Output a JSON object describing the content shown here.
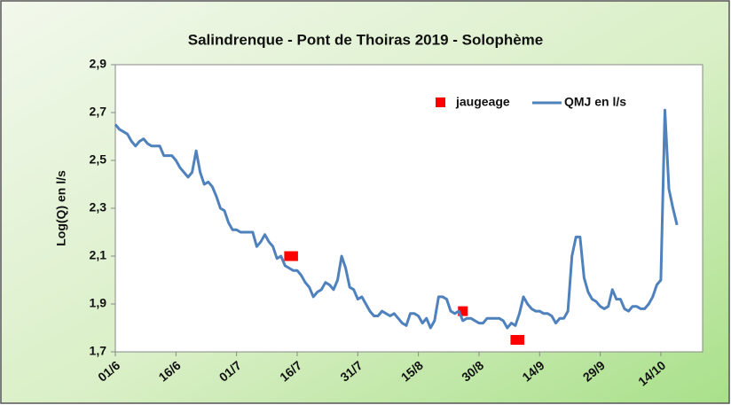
{
  "chart_data": {
    "type": "line",
    "title": "Salindrenque - Pont de Thoiras 2019 - Solophème",
    "y_label": "Log(Q) en l/s",
    "categories": [
      "01/6",
      null,
      null,
      null,
      null,
      null,
      null,
      null,
      null,
      null,
      null,
      null,
      null,
      null,
      null,
      "16/6",
      null,
      null,
      null,
      null,
      null,
      null,
      null,
      null,
      null,
      null,
      null,
      null,
      null,
      null,
      "01/7",
      null,
      null,
      null,
      null,
      null,
      null,
      null,
      null,
      null,
      null,
      null,
      null,
      null,
      null,
      "16/7",
      null,
      null,
      null,
      null,
      null,
      null,
      null,
      null,
      null,
      null,
      null,
      null,
      null,
      null,
      "31/7",
      null,
      null,
      null,
      null,
      null,
      null,
      null,
      null,
      null,
      null,
      null,
      null,
      null,
      null,
      "15/8",
      null,
      null,
      null,
      null,
      null,
      null,
      null,
      null,
      null,
      null,
      null,
      null,
      null,
      null,
      "30/8",
      null,
      null,
      null,
      null,
      null,
      null,
      null,
      null,
      null,
      null,
      null,
      null,
      null,
      null,
      "14/9",
      null,
      null,
      null,
      null,
      null,
      null,
      null,
      null,
      null,
      null,
      null,
      null,
      null,
      null,
      "29/9",
      null,
      null,
      null,
      null,
      null,
      null,
      null,
      null,
      null,
      null,
      null,
      null,
      null,
      null,
      "14/10",
      null,
      null,
      null,
      null
    ],
    "series": [
      {
        "name": "jaugeage",
        "color": "#ff0000",
        "style": "marker",
        "values": [
          null,
          null,
          null,
          null,
          null,
          null,
          null,
          null,
          null,
          null,
          null,
          null,
          null,
          null,
          null,
          null,
          null,
          null,
          null,
          null,
          null,
          null,
          null,
          null,
          null,
          null,
          null,
          null,
          null,
          null,
          null,
          null,
          null,
          null,
          null,
          null,
          null,
          null,
          null,
          null,
          null,
          null,
          null,
          2.1,
          2.1,
          null,
          null,
          null,
          null,
          null,
          null,
          null,
          null,
          null,
          null,
          null,
          null,
          null,
          null,
          null,
          null,
          null,
          null,
          null,
          null,
          null,
          null,
          null,
          null,
          null,
          null,
          null,
          null,
          null,
          null,
          null,
          null,
          null,
          null,
          null,
          null,
          null,
          null,
          null,
          null,
          null,
          1.87,
          null,
          null,
          null,
          null,
          null,
          null,
          null,
          null,
          null,
          null,
          null,
          null,
          1.75,
          1.75,
          null,
          null,
          null,
          null,
          null,
          null,
          null,
          null,
          null,
          null,
          null,
          null,
          null,
          null,
          null,
          null,
          null,
          null,
          null,
          null,
          null,
          null,
          null,
          null,
          null,
          null,
          null,
          null,
          null,
          null,
          null,
          null,
          null,
          null,
          null,
          null,
          null,
          null,
          null
        ]
      },
      {
        "name": "QMJ en l/s",
        "color": "#4f81bd",
        "style": "line",
        "values": [
          2.65,
          2.63,
          2.62,
          2.61,
          2.58,
          2.56,
          2.58,
          2.59,
          2.57,
          2.56,
          2.56,
          2.56,
          2.52,
          2.52,
          2.52,
          2.5,
          2.47,
          2.45,
          2.43,
          2.45,
          2.54,
          2.45,
          2.4,
          2.41,
          2.39,
          2.35,
          2.3,
          2.29,
          2.24,
          2.21,
          2.21,
          2.2,
          2.2,
          2.2,
          2.2,
          2.14,
          2.16,
          2.19,
          2.16,
          2.14,
          2.09,
          2.1,
          2.06,
          2.05,
          2.04,
          2.04,
          2.02,
          1.99,
          1.97,
          1.93,
          1.95,
          1.96,
          1.99,
          1.98,
          1.96,
          2.0,
          2.1,
          2.05,
          1.97,
          1.96,
          1.92,
          1.93,
          1.9,
          1.87,
          1.85,
          1.85,
          1.87,
          1.86,
          1.85,
          1.86,
          1.84,
          1.82,
          1.81,
          1.86,
          1.86,
          1.85,
          1.82,
          1.84,
          1.8,
          1.83,
          1.93,
          1.93,
          1.92,
          1.87,
          1.86,
          1.87,
          1.83,
          1.84,
          1.84,
          1.83,
          1.82,
          1.82,
          1.84,
          1.84,
          1.84,
          1.84,
          1.83,
          1.8,
          1.82,
          1.81,
          1.86,
          1.93,
          1.9,
          1.88,
          1.87,
          1.87,
          1.86,
          1.86,
          1.85,
          1.82,
          1.84,
          1.84,
          1.87,
          2.1,
          2.18,
          2.18,
          2.01,
          1.95,
          1.92,
          1.91,
          1.89,
          1.88,
          1.89,
          1.96,
          1.92,
          1.92,
          1.88,
          1.87,
          1.89,
          1.89,
          1.88,
          1.88,
          1.9,
          1.93,
          1.98,
          2.0,
          2.71,
          2.38,
          2.3,
          2.23
        ]
      }
    ],
    "ylim": [
      1.7,
      2.9
    ],
    "yticks": [
      {
        "value": 1.7,
        "label": "1,7"
      },
      {
        "value": 1.9,
        "label": "1,9"
      },
      {
        "value": 2.1,
        "label": "2,1"
      },
      {
        "value": 2.3,
        "label": "2,3"
      },
      {
        "value": 2.5,
        "label": "2,5"
      },
      {
        "value": 2.7,
        "label": "2,7"
      },
      {
        "value": 2.9,
        "label": "2,9"
      }
    ],
    "grid": false,
    "legend": "top-right"
  }
}
